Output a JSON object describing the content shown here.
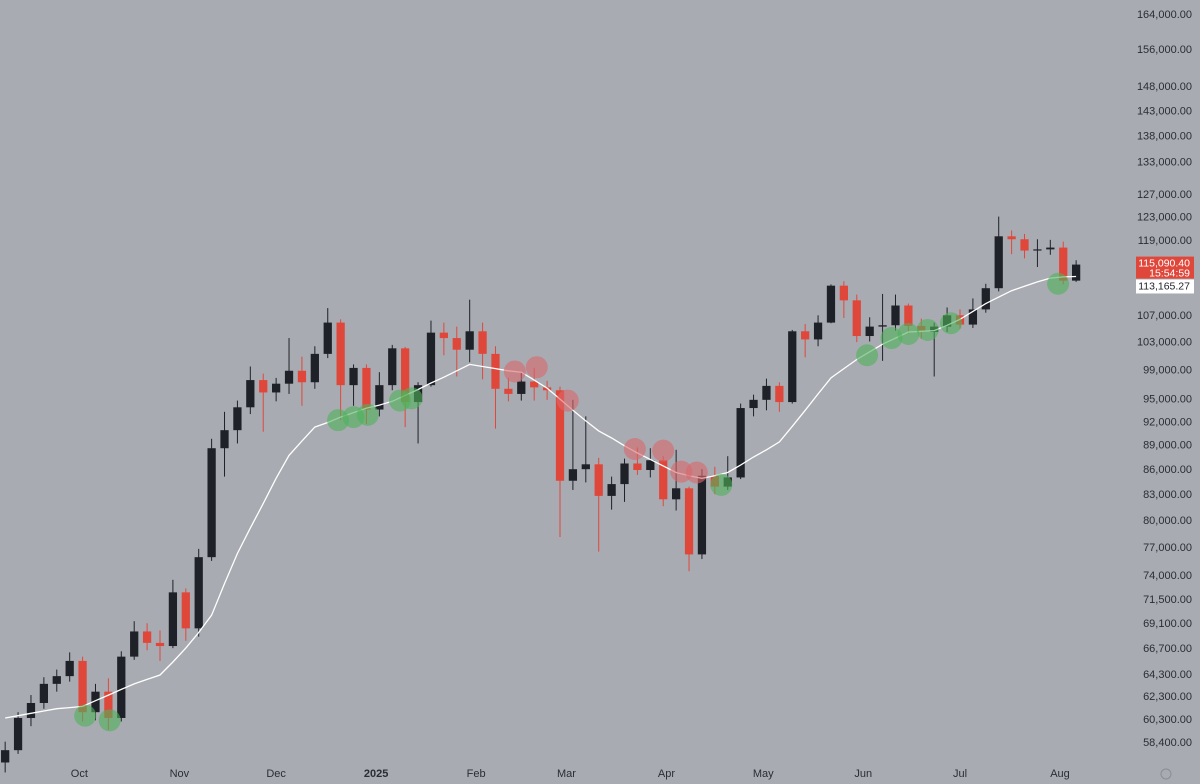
{
  "chart_data": {
    "type": "candlestick",
    "log_scale": true,
    "up_color": "#1f2128",
    "down_color": "#e0473b",
    "background": "#a9abb2",
    "xlim": [
      -0.4,
      86.4
    ],
    "xticks": [
      {
        "value": 5.75,
        "label": "Oct"
      },
      {
        "value": 13.5,
        "label": "Nov"
      },
      {
        "value": 21,
        "label": "Dec"
      },
      {
        "value": 28.75,
        "label": "2025"
      },
      {
        "value": 36.5,
        "label": "Feb"
      },
      {
        "value": 43.5,
        "label": "Mar"
      },
      {
        "value": 51.25,
        "label": "Apr"
      },
      {
        "value": 58.75,
        "label": "May"
      },
      {
        "value": 66.5,
        "label": "Jun"
      },
      {
        "value": 74,
        "label": "Jul"
      },
      {
        "value": 81.75,
        "label": "Aug"
      }
    ],
    "ylim": [
      57000,
      167500
    ],
    "yticks": [
      {
        "value": 164000,
        "label": "164,000.00"
      },
      {
        "value": 156000,
        "label": "156,000.00"
      },
      {
        "value": 148000,
        "label": "148,000.00"
      },
      {
        "value": 143000,
        "label": "143,000.00"
      },
      {
        "value": 138000,
        "label": "138,000.00"
      },
      {
        "value": 133000,
        "label": "133,000.00"
      },
      {
        "value": 127000,
        "label": "127,000.00"
      },
      {
        "value": 123000,
        "label": "123,000.00"
      },
      {
        "value": 119000,
        "label": "119,000.00"
      },
      {
        "value": 107000,
        "label": "107,000.00"
      },
      {
        "value": 103000,
        "label": "103,000.00"
      },
      {
        "value": 99000,
        "label": "99,000.00"
      },
      {
        "value": 95000,
        "label": "95,000.00"
      },
      {
        "value": 92000,
        "label": "92,000.00"
      },
      {
        "value": 89000,
        "label": "89,000.00"
      },
      {
        "value": 86000,
        "label": "86,000.00"
      },
      {
        "value": 83000,
        "label": "83,000.00"
      },
      {
        "value": 80000,
        "label": "80,000.00"
      },
      {
        "value": 77000,
        "label": "77,000.00"
      },
      {
        "value": 74000,
        "label": "74,000.00"
      },
      {
        "value": 71500,
        "label": "71,500.00"
      },
      {
        "value": 69100,
        "label": "69,100.00"
      },
      {
        "value": 66700,
        "label": "66,700.00"
      },
      {
        "value": 64300,
        "label": "64,300.00"
      },
      {
        "value": 62300,
        "label": "62,300.00"
      },
      {
        "value": 60300,
        "label": "60,300.00"
      },
      {
        "value": 58400,
        "label": "58,400.00"
      }
    ],
    "open": [
      56800,
      57800,
      60500,
      61800,
      63500,
      64200,
      65600,
      61000,
      62800,
      60500,
      66000,
      68400,
      67300,
      67000,
      72300,
      68700,
      76000,
      88700,
      91000,
      94000,
      97700,
      96000,
      97200,
      99000,
      97400,
      101400,
      106000,
      97000,
      99400,
      93700,
      97000,
      102200,
      94700,
      97000,
      104500,
      103700,
      102000,
      104700,
      101400,
      96500,
      95800,
      97500,
      96700,
      96300,
      84700,
      86100,
      86700,
      82900,
      84300,
      86800,
      86000,
      87200,
      82500,
      83800,
      76300,
      85300,
      84000,
      85100,
      93900,
      95000,
      96900,
      94700,
      104700,
      103500,
      106000,
      111700,
      109400,
      104000,
      105400,
      105600,
      108600,
      105500,
      104600,
      105400,
      107100,
      105700,
      108000,
      111300,
      119800,
      119300,
      117400,
      117600,
      117900,
      112500
    ],
    "high": [
      58500,
      61000,
      62500,
      64100,
      64800,
      66400,
      66000,
      63500,
      64000,
      66500,
      69400,
      69200,
      68500,
      73600,
      72700,
      76900,
      89900,
      93400,
      94900,
      99600,
      98600,
      98000,
      103700,
      101000,
      102500,
      108200,
      106500,
      99900,
      99900,
      98800,
      102700,
      102400,
      97400,
      106300,
      106000,
      105400,
      109500,
      106000,
      102500,
      98000,
      98800,
      99400,
      97600,
      96800,
      95000,
      92800,
      87500,
      85200,
      87400,
      88800,
      88700,
      87700,
      88500,
      84000,
      86100,
      86400,
      87700,
      94500,
      95700,
      97900,
      97400,
      104900,
      105800,
      107100,
      111900,
      112400,
      110300,
      106800,
      110400,
      110300,
      108900,
      106600,
      106000,
      108300,
      108000,
      109700,
      112000,
      123200,
      120800,
      120200,
      119300,
      119200,
      118900,
      115800
    ],
    "low": [
      56000,
      57500,
      59800,
      61300,
      62800,
      63700,
      60200,
      60300,
      59500,
      60200,
      65700,
      66600,
      65600,
      66800,
      67500,
      67900,
      75600,
      85200,
      89300,
      93100,
      90800,
      94800,
      95800,
      94200,
      96500,
      100800,
      92300,
      94200,
      91800,
      92800,
      96300,
      91400,
      89300,
      96800,
      101200,
      98200,
      100200,
      97800,
      91200,
      94800,
      94900,
      94900,
      95000,
      78200,
      83600,
      84500,
      76600,
      81300,
      82200,
      85400,
      85100,
      81700,
      81200,
      74500,
      75800,
      83100,
      83600,
      84900,
      92800,
      93600,
      93400,
      94500,
      100900,
      102500,
      105900,
      106700,
      103100,
      103200,
      100400,
      104800,
      104400,
      103600,
      98200,
      104600,
      105100,
      105200,
      107500,
      110800,
      116800,
      116100,
      114700,
      116700,
      111900,
      112300
    ],
    "close": [
      57800,
      60500,
      61800,
      63500,
      64200,
      65600,
      61000,
      62800,
      60500,
      66000,
      68400,
      67300,
      67000,
      72300,
      68700,
      76000,
      88700,
      91000,
      94000,
      97700,
      96000,
      97200,
      99000,
      97400,
      101400,
      106000,
      97000,
      99400,
      93700,
      97000,
      102200,
      94700,
      97000,
      104500,
      103700,
      102000,
      104700,
      101400,
      96500,
      95800,
      97500,
      96700,
      96300,
      84700,
      86100,
      86700,
      82900,
      84300,
      86800,
      86000,
      87200,
      82500,
      83800,
      76300,
      85300,
      84000,
      85100,
      93900,
      95000,
      96900,
      94700,
      104700,
      103500,
      106000,
      111700,
      109400,
      104000,
      105400,
      105600,
      108600,
      105500,
      104600,
      105400,
      107100,
      105700,
      108000,
      111300,
      119800,
      119300,
      117400,
      117600,
      117900,
      112500,
      115090.4
    ],
    "ma": {
      "color": "#ffffff",
      "values": [
        60500,
        60700,
        60900,
        61100,
        61300,
        61400,
        61500,
        62000,
        62500,
        63000,
        63500,
        63900,
        64300,
        65500,
        66800,
        68300,
        70000,
        73200,
        76400,
        79200,
        82000,
        85000,
        87800,
        89600,
        91400,
        92000,
        92700,
        93300,
        93900,
        94300,
        94800,
        95600,
        96400,
        97300,
        98100,
        99000,
        99900,
        99600,
        99300,
        99000,
        98800,
        97700,
        96600,
        95100,
        93600,
        92200,
        90900,
        90000,
        89000,
        88100,
        87300,
        86500,
        85700,
        85300,
        85000,
        85300,
        85700,
        86600,
        87600,
        88500,
        89500,
        91500,
        93600,
        95800,
        98000,
        99300,
        100600,
        101700,
        102800,
        103700,
        104600,
        104700,
        104800,
        105600,
        106500,
        107700,
        108900,
        109900,
        110900,
        111600,
        112300,
        112900,
        113100,
        113165.27
      ]
    },
    "bullish_touches": {
      "color": "#4fb35a",
      "x": [
        6.2,
        8.1,
        25.8,
        27.0,
        28.1,
        30.6,
        31.5,
        55.5,
        66.8,
        68.7,
        70.0,
        71.5,
        73.3,
        81.6
      ],
      "y": [
        60700,
        60300,
        92300,
        92700,
        93000,
        94900,
        95200,
        84200,
        101200,
        103700,
        104300,
        104900,
        105900,
        112000
      ]
    },
    "bearish_touches": {
      "color": "#d9686a",
      "x": [
        39.5,
        41.2,
        43.6,
        48.8,
        51.0,
        52.4,
        53.6
      ],
      "y": [
        98900,
        99500,
        94900,
        88600,
        88400,
        85800,
        85700
      ]
    },
    "price_tag": {
      "value": 115090.4,
      "label": "115,090.40",
      "color": "#e0473b"
    },
    "countdown": "15:54:59",
    "ma_tag": {
      "value": 113165.27,
      "label": "113,165.27"
    }
  }
}
